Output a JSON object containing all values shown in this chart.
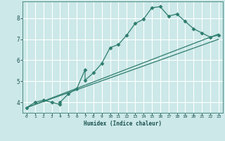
{
  "xlabel": "Humidex (Indice chaleur)",
  "bg_color": "#cce8e8",
  "grid_color": "#ffffff",
  "line_color": "#2e7d6e",
  "xlim": [
    -0.5,
    23.5
  ],
  "ylim": [
    3.5,
    8.8
  ],
  "xticks": [
    0,
    1,
    2,
    3,
    4,
    5,
    6,
    7,
    8,
    9,
    10,
    11,
    12,
    13,
    14,
    15,
    16,
    17,
    18,
    19,
    20,
    21,
    22,
    23
  ],
  "yticks": [
    4,
    5,
    6,
    7,
    8
  ],
  "line1_x": [
    0,
    1,
    2,
    3,
    4,
    4,
    5,
    6,
    7,
    7,
    8,
    9,
    10,
    11,
    12,
    13,
    14,
    15,
    16,
    17,
    18,
    19,
    20,
    21,
    22,
    23
  ],
  "line1_y": [
    3.75,
    4.0,
    4.1,
    4.0,
    3.9,
    4.0,
    4.4,
    4.65,
    5.55,
    5.05,
    5.4,
    5.85,
    6.6,
    6.75,
    7.2,
    7.75,
    7.95,
    8.5,
    8.55,
    8.1,
    8.2,
    7.85,
    7.5,
    7.3,
    7.1,
    7.2
  ],
  "line2_x": [
    0,
    23
  ],
  "line2_y": [
    3.75,
    7.25
  ],
  "line3_x": [
    0,
    23
  ],
  "line3_y": [
    3.75,
    7.25
  ],
  "line4_x": [
    0,
    23
  ],
  "line4_y": [
    3.75,
    7.0
  ]
}
